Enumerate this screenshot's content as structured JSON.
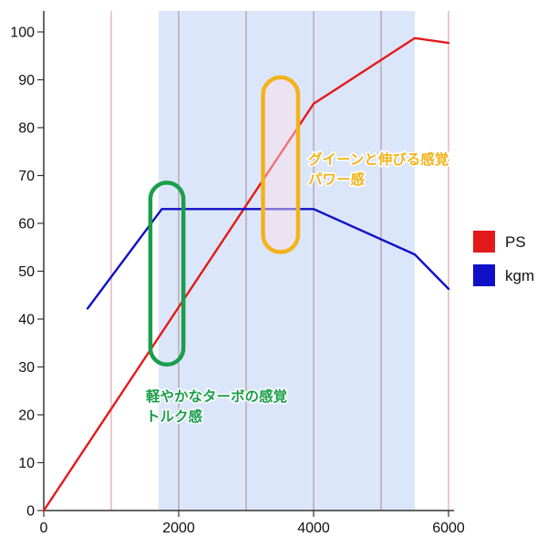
{
  "chart_data": {
    "type": "line",
    "x_range": [
      0,
      6000
    ],
    "ylim": [
      0,
      100
    ],
    "x_ticks": [
      "0",
      "2000",
      "4000",
      "6000"
    ],
    "y_ticks": [
      "0",
      "10",
      "20",
      "30",
      "40",
      "50",
      "60",
      "70",
      "80",
      "90",
      "100"
    ],
    "grid": "vertical",
    "legend_position": "right",
    "highlight_band": {
      "x": [
        1700,
        5500
      ],
      "color": "#dbe6fb"
    },
    "series": [
      {
        "name": "PS",
        "color": "#e41a1a",
        "points": [
          [
            0,
            0
          ],
          [
            4000,
            85
          ],
          [
            5500,
            98.7
          ],
          [
            6000,
            97.7
          ]
        ]
      },
      {
        "name": "kgm",
        "color": "#1010c8",
        "points": [
          [
            650,
            42.2
          ],
          [
            1750,
            63
          ],
          [
            4000,
            63
          ],
          [
            5500,
            53.5
          ],
          [
            6000,
            46.3
          ]
        ]
      }
    ],
    "annotations": [
      {
        "lines": [
          "軽やかなターボの感覚",
          "トルク感"
        ],
        "color": "#1a9e4a",
        "box_x": [
          1580,
          2070
        ],
        "box_y": [
          30.5,
          68.5
        ]
      },
      {
        "lines": [
          "グイーンと伸びる感覚",
          "パワー感"
        ],
        "color": "#f2b31b",
        "box_x": [
          3250,
          3770
        ],
        "box_y": [
          54,
          90.5
        ]
      }
    ]
  }
}
